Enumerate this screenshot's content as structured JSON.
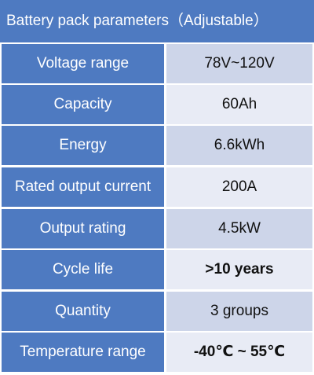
{
  "table": {
    "title": "Battery pack parameters（Adjustable）",
    "rows": [
      {
        "label": "Voltage range",
        "value": "78V~120V"
      },
      {
        "label": "Capacity",
        "value": "60Ah"
      },
      {
        "label": "Energy",
        "value": "6.6kWh"
      },
      {
        "label": "Rated output current",
        "value": "200A"
      },
      {
        "label": "Output rating",
        "value": "4.5kW"
      },
      {
        "label": "Cycle life",
        "value": ">10 years"
      },
      {
        "label": "Quantity",
        "value": "3 groups"
      },
      {
        "label": "Temperature range",
        "value": "-40℃ ~ 55℃"
      }
    ]
  },
  "colors": {
    "header_bg": "#4e7ac1",
    "label_bg": "#4e7ac1",
    "value_bg_alt1": "#cdd5e9",
    "value_bg_alt2": "#e8ebf5",
    "text_light": "#ffffff",
    "text_dark": "#111111"
  }
}
